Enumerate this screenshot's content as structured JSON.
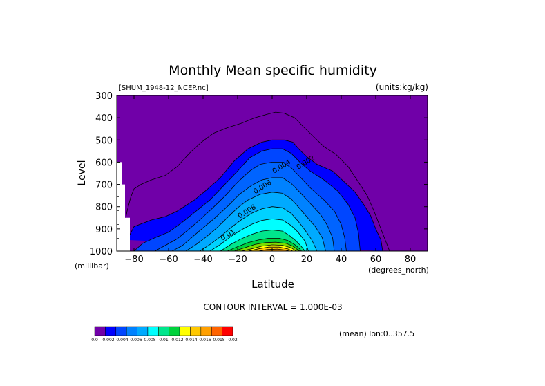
{
  "chart_data": {
    "type": "contour",
    "title": "Monthly Mean specific humidity",
    "file_label": "[SHUM_1948-12_NCEP.nc]",
    "units_label": "(units:kg/kg)",
    "ylabel": "Level",
    "yunit": "(millibar)",
    "xlabel": "Latitude",
    "xunit": "(degrees_north)",
    "contour_interval_text": "CONTOUR INTERVAL = 1.000E-03",
    "mean_note": "(mean) lon:0..357.5",
    "xlim": [
      -90,
      90
    ],
    "ylim": [
      1000,
      300
    ],
    "y_reversed": true,
    "x_ticks": [
      -80,
      -60,
      -40,
      -20,
      0,
      20,
      40,
      60,
      80
    ],
    "x_tick_labels": [
      "−80",
      "−60",
      "−40",
      "−20",
      "0",
      "20",
      "40",
      "60",
      "80"
    ],
    "y_ticks": [
      300,
      400,
      500,
      600,
      700,
      800,
      900,
      1000
    ],
    "y_tick_labels": [
      "300",
      "400",
      "500",
      "600",
      "700",
      "800",
      "900",
      "1000"
    ],
    "contour_labels": [
      {
        "text": "0.002",
        "lat": 20,
        "lev": 610
      },
      {
        "text": "0.004",
        "lat": 6,
        "lev": 628
      },
      {
        "text": "0.006",
        "lat": -5,
        "lev": 720
      },
      {
        "text": "0.008",
        "lat": -14,
        "lev": 830
      },
      {
        "text": "0.01",
        "lat": -25,
        "lev": 935
      }
    ],
    "levels": [
      {
        "value": 0.002,
        "color": "#0000ff",
        "boundary": [
          [
            -84,
            950
          ],
          [
            -80,
            890
          ],
          [
            -70,
            860
          ],
          [
            -62,
            845
          ],
          [
            -55,
            820
          ],
          [
            -45,
            770
          ],
          [
            -38,
            725
          ],
          [
            -30,
            670
          ],
          [
            -22,
            595
          ],
          [
            -14,
            540
          ],
          [
            -6,
            510
          ],
          [
            0,
            500
          ],
          [
            7,
            500
          ],
          [
            12,
            510
          ],
          [
            16,
            545
          ],
          [
            20,
            575
          ],
          [
            26,
            610
          ],
          [
            35,
            640
          ],
          [
            42,
            690
          ],
          [
            48,
            735
          ],
          [
            53,
            790
          ],
          [
            57,
            840
          ],
          [
            60,
            900
          ],
          [
            63,
            950
          ],
          [
            64,
            1000
          ]
        ]
      },
      {
        "value": 0.003,
        "color": "#0046ff",
        "boundary": [
          [
            -80,
            1000
          ],
          [
            -75,
            965
          ],
          [
            -68,
            940
          ],
          [
            -60,
            915
          ],
          [
            -52,
            870
          ],
          [
            -44,
            820
          ],
          [
            -36,
            770
          ],
          [
            -28,
            705
          ],
          [
            -20,
            640
          ],
          [
            -13,
            580
          ],
          [
            -6,
            550
          ],
          [
            0,
            540
          ],
          [
            6,
            540
          ],
          [
            11,
            560
          ],
          [
            16,
            600
          ],
          [
            22,
            640
          ],
          [
            30,
            680
          ],
          [
            38,
            730
          ],
          [
            44,
            790
          ],
          [
            48,
            850
          ],
          [
            50,
            920
          ],
          [
            51,
            1000
          ]
        ]
      },
      {
        "value": 0.004,
        "color": "#0064ff",
        "boundary": [
          [
            -68,
            1000
          ],
          [
            -62,
            975
          ],
          [
            -55,
            945
          ],
          [
            -48,
            900
          ],
          [
            -42,
            860
          ],
          [
            -35,
            810
          ],
          [
            -27,
            750
          ],
          [
            -20,
            690
          ],
          [
            -13,
            640
          ],
          [
            -7,
            610
          ],
          [
            0,
            600
          ],
          [
            6,
            600
          ],
          [
            11,
            625
          ],
          [
            16,
            665
          ],
          [
            22,
            715
          ],
          [
            30,
            770
          ],
          [
            36,
            820
          ],
          [
            40,
            880
          ],
          [
            42,
            940
          ],
          [
            43,
            1000
          ]
        ]
      },
      {
        "value": 0.005,
        "color": "#0082ff",
        "boundary": [
          [
            -58,
            1000
          ],
          [
            -52,
            975
          ],
          [
            -46,
            935
          ],
          [
            -40,
            895
          ],
          [
            -33,
            850
          ],
          [
            -26,
            800
          ],
          [
            -19,
            745
          ],
          [
            -12,
            705
          ],
          [
            -6,
            680
          ],
          [
            0,
            670
          ],
          [
            6,
            670
          ],
          [
            11,
            695
          ],
          [
            16,
            735
          ],
          [
            22,
            785
          ],
          [
            28,
            835
          ],
          [
            32,
            885
          ],
          [
            35,
            940
          ],
          [
            36,
            1000
          ]
        ]
      },
      {
        "value": 0.006,
        "color": "#00aaff",
        "boundary": [
          [
            -50,
            1000
          ],
          [
            -44,
            970
          ],
          [
            -38,
            935
          ],
          [
            -32,
            895
          ],
          [
            -26,
            850
          ],
          [
            -20,
            805
          ],
          [
            -14,
            770
          ],
          [
            -7,
            745
          ],
          [
            0,
            735
          ],
          [
            6,
            740
          ],
          [
            11,
            765
          ],
          [
            15,
            800
          ],
          [
            20,
            845
          ],
          [
            25,
            890
          ],
          [
            29,
            940
          ],
          [
            31,
            1000
          ]
        ]
      },
      {
        "value": 0.007,
        "color": "#00d2ff",
        "boundary": [
          [
            -42,
            1000
          ],
          [
            -36,
            970
          ],
          [
            -30,
            935
          ],
          [
            -24,
            895
          ],
          [
            -18,
            860
          ],
          [
            -12,
            830
          ],
          [
            -6,
            810
          ],
          [
            0,
            800
          ],
          [
            6,
            805
          ],
          [
            11,
            830
          ],
          [
            15,
            865
          ],
          [
            19,
            905
          ],
          [
            23,
            950
          ],
          [
            26,
            1000
          ]
        ]
      },
      {
        "value": 0.008,
        "color": "#00ffff",
        "boundary": [
          [
            -36,
            1000
          ],
          [
            -30,
            970
          ],
          [
            -24,
            935
          ],
          [
            -18,
            905
          ],
          [
            -12,
            880
          ],
          [
            -6,
            862
          ],
          [
            0,
            855
          ],
          [
            6,
            860
          ],
          [
            11,
            885
          ],
          [
            15,
            915
          ],
          [
            19,
            955
          ],
          [
            21,
            1000
          ]
        ]
      },
      {
        "value": 0.009,
        "color": "#00e68c",
        "boundary": [
          [
            -30,
            1000
          ],
          [
            -24,
            970
          ],
          [
            -18,
            945
          ],
          [
            -12,
            925
          ],
          [
            -6,
            910
          ],
          [
            0,
            905
          ],
          [
            6,
            910
          ],
          [
            10,
            930
          ],
          [
            14,
            955
          ],
          [
            17,
            980
          ],
          [
            19,
            1000
          ]
        ]
      },
      {
        "value": 0.01,
        "color": "#00d23c",
        "boundary": [
          [
            -26,
            1000
          ],
          [
            -20,
            980
          ],
          [
            -14,
            962
          ],
          [
            -8,
            950
          ],
          [
            -2,
            942
          ],
          [
            4,
            942
          ],
          [
            9,
            952
          ],
          [
            13,
            970
          ],
          [
            16,
            990
          ],
          [
            17,
            1000
          ]
        ]
      },
      {
        "value": 0.011,
        "color": "#7ddc00",
        "boundary": [
          [
            -22,
            1000
          ],
          [
            -16,
            985
          ],
          [
            -10,
            970
          ],
          [
            -4,
            962
          ],
          [
            2,
            960
          ],
          [
            8,
            965
          ],
          [
            12,
            978
          ],
          [
            15,
            995
          ],
          [
            16,
            1000
          ]
        ]
      },
      {
        "value": 0.012,
        "color": "#ffff00",
        "boundary": [
          [
            -18,
            1000
          ],
          [
            -12,
            990
          ],
          [
            -6,
            978
          ],
          [
            0,
            972
          ],
          [
            6,
            974
          ],
          [
            11,
            985
          ],
          [
            14,
            1000
          ]
        ]
      },
      {
        "value": 0.013,
        "color": "#ffc800",
        "boundary": [
          [
            -14,
            1000
          ],
          [
            -8,
            990
          ],
          [
            -2,
            982
          ],
          [
            4,
            982
          ],
          [
            9,
            990
          ],
          [
            12,
            1000
          ]
        ]
      },
      {
        "value": 0.014,
        "color": "#ffa000",
        "boundary": [
          [
            -8,
            1000
          ],
          [
            -3,
            993
          ],
          [
            3,
            991
          ],
          [
            8,
            996
          ],
          [
            10,
            1000
          ]
        ]
      }
    ],
    "outer_contour": [
      [
        -88,
        1000
      ],
      [
        -86,
        900
      ],
      [
        -84,
        820
      ],
      [
        -82,
        760
      ],
      [
        -80,
        720
      ],
      [
        -76,
        700
      ],
      [
        -70,
        680
      ],
      [
        -62,
        660
      ],
      [
        -55,
        620
      ],
      [
        -48,
        560
      ],
      [
        -41,
        510
      ],
      [
        -34,
        470
      ],
      [
        -26,
        445
      ],
      [
        -18,
        425
      ],
      [
        -10,
        400
      ],
      [
        -3,
        385
      ],
      [
        2,
        375
      ],
      [
        7,
        380
      ],
      [
        13,
        400
      ],
      [
        18,
        440
      ],
      [
        24,
        485
      ],
      [
        30,
        530
      ],
      [
        37,
        565
      ],
      [
        44,
        620
      ],
      [
        50,
        690
      ],
      [
        55,
        750
      ],
      [
        59,
        820
      ],
      [
        63,
        900
      ],
      [
        66,
        960
      ],
      [
        68,
        1000
      ]
    ],
    "missing_region_levels": [
      600,
      700,
      850
    ],
    "colorbar": {
      "colors": [
        "#7000a8",
        "#0000ff",
        "#0046ff",
        "#0082ff",
        "#00aaff",
        "#00ffff",
        "#00e68c",
        "#00d23c",
        "#ffff00",
        "#ffc800",
        "#ffa000",
        "#ff6400",
        "#ff0000"
      ],
      "labels": [
        "0.0",
        "0.002",
        "0.004",
        "0.006",
        "0.008",
        "0.01",
        "0.012",
        "0.014",
        "0.016",
        "0.018",
        "0.02"
      ]
    },
    "colors": {
      "background_fill": "#7000a8",
      "contour_line": "#000000"
    }
  }
}
